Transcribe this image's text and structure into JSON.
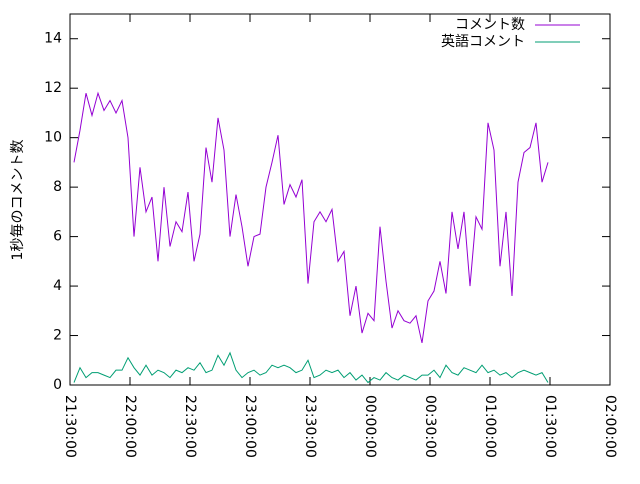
{
  "chart_data": {
    "type": "line",
    "y_label": "1秒毎のコメント数",
    "x": [
      "21:32:00",
      "21:35:00",
      "21:38:00",
      "21:41:00",
      "21:44:00",
      "21:47:00",
      "21:50:00",
      "21:53:00",
      "21:56:00",
      "21:59:00",
      "22:02:00",
      "22:05:00",
      "22:08:00",
      "22:11:00",
      "22:14:00",
      "22:17:00",
      "22:20:00",
      "22:23:00",
      "22:26:00",
      "22:29:00",
      "22:32:00",
      "22:35:00",
      "22:38:00",
      "22:41:00",
      "22:44:00",
      "22:47:00",
      "22:50:00",
      "22:53:00",
      "22:56:00",
      "22:59:00",
      "23:02:00",
      "23:05:00",
      "23:08:00",
      "23:11:00",
      "23:14:00",
      "23:17:00",
      "23:20:00",
      "23:23:00",
      "23:26:00",
      "23:29:00",
      "23:32:00",
      "23:35:00",
      "23:38:00",
      "23:41:00",
      "23:44:00",
      "23:47:00",
      "23:50:00",
      "23:53:00",
      "23:56:00",
      "23:59:00",
      "00:02:00",
      "00:05:00",
      "00:08:00",
      "00:11:00",
      "00:14:00",
      "00:17:00",
      "00:20:00",
      "00:23:00",
      "00:26:00",
      "00:29:00",
      "00:32:00",
      "00:35:00",
      "00:38:00",
      "00:41:00",
      "00:44:00",
      "00:47:00",
      "00:50:00",
      "00:53:00",
      "00:56:00",
      "00:59:00",
      "01:02:00",
      "01:05:00",
      "01:08:00",
      "01:11:00",
      "01:14:00",
      "01:17:00",
      "01:20:00",
      "01:23:00",
      "01:26:00",
      "01:29:00"
    ],
    "series": [
      {
        "name": "コメント数",
        "color": "#9400d3",
        "values": [
          9.0,
          10.3,
          11.8,
          10.9,
          11.8,
          11.1,
          11.5,
          11.0,
          11.5,
          10.0,
          6.0,
          8.8,
          7.0,
          7.6,
          5.0,
          8.0,
          5.6,
          6.6,
          6.2,
          7.8,
          5.0,
          6.1,
          9.6,
          8.2,
          10.8,
          9.5,
          6.0,
          7.7,
          6.4,
          4.8,
          6.0,
          6.1,
          8.0,
          9.0,
          10.1,
          7.3,
          8.1,
          7.6,
          8.3,
          4.1,
          6.6,
          7.0,
          6.6,
          7.1,
          5.0,
          5.4,
          2.8,
          4.0,
          2.1,
          2.9,
          2.6,
          6.4,
          4.2,
          2.3,
          3.0,
          2.6,
          2.5,
          2.8,
          1.7,
          3.4,
          3.8,
          5.0,
          3.7,
          7.0,
          5.5,
          7.0,
          4.0,
          6.8,
          6.3,
          10.6,
          9.5,
          4.8,
          7.0,
          3.6,
          8.2,
          9.4,
          9.6,
          10.6,
          8.2,
          9.0
        ]
      },
      {
        "name": "英語コメント",
        "color": "#009e73",
        "values": [
          0.1,
          0.7,
          0.3,
          0.5,
          0.5,
          0.4,
          0.3,
          0.6,
          0.6,
          1.1,
          0.7,
          0.4,
          0.8,
          0.4,
          0.6,
          0.5,
          0.3,
          0.6,
          0.5,
          0.7,
          0.6,
          0.9,
          0.5,
          0.6,
          1.2,
          0.8,
          1.3,
          0.6,
          0.3,
          0.5,
          0.6,
          0.4,
          0.5,
          0.8,
          0.7,
          0.8,
          0.7,
          0.5,
          0.6,
          1.0,
          0.3,
          0.4,
          0.6,
          0.5,
          0.6,
          0.3,
          0.5,
          0.2,
          0.4,
          0.1,
          0.3,
          0.2,
          0.5,
          0.3,
          0.2,
          0.4,
          0.3,
          0.2,
          0.4,
          0.4,
          0.6,
          0.3,
          0.8,
          0.5,
          0.4,
          0.7,
          0.6,
          0.5,
          0.8,
          0.5,
          0.6,
          0.4,
          0.5,
          0.3,
          0.5,
          0.6,
          0.5,
          0.4,
          0.5,
          0.1
        ]
      }
    ],
    "xlim": [
      "21:30:00",
      "02:00:00"
    ],
    "xticks": [
      "21:30:00",
      "22:00:00",
      "22:30:00",
      "23:00:00",
      "23:30:00",
      "00:00:00",
      "00:30:00",
      "01:00:00",
      "01:30:00",
      "02:00:00"
    ],
    "ylim": [
      0,
      15
    ],
    "yticks": [
      0,
      2,
      4,
      6,
      8,
      10,
      12,
      14
    ],
    "grid": false,
    "legend": "top-right"
  }
}
